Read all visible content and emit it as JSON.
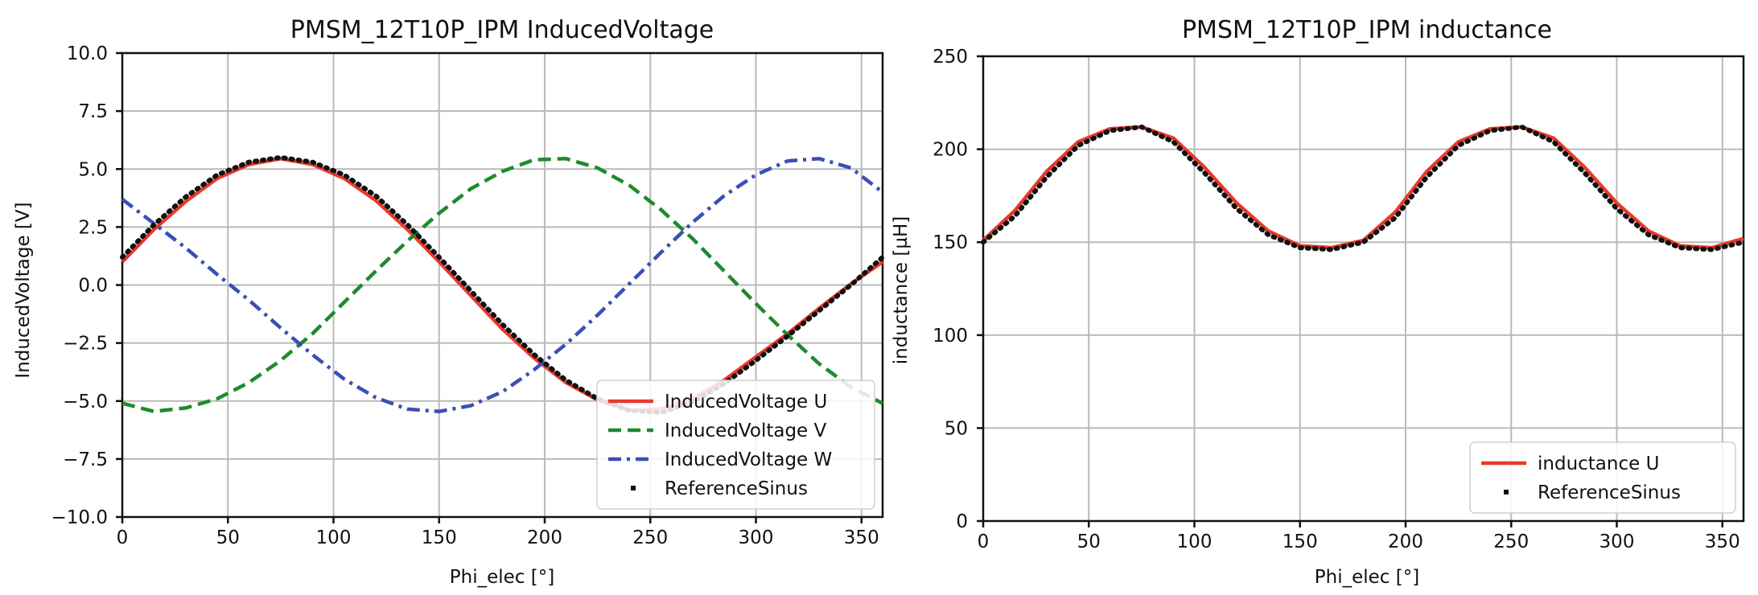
{
  "chart_data": [
    {
      "type": "line",
      "title": "PMSM_12T10P_IPM InducedVoltage",
      "xlabel": "Phi_elec [°]",
      "ylabel": "InducedVoltage [V]",
      "xlim": [
        0,
        360
      ],
      "ylim": [
        -10,
        10
      ],
      "xticks": [
        0,
        50,
        100,
        150,
        200,
        250,
        300,
        350
      ],
      "xtick_labels": [
        "0",
        "50",
        "100",
        "150",
        "200",
        "250",
        "300",
        "350"
      ],
      "yticks": [
        -10,
        -7.5,
        -5,
        -2.5,
        0,
        2.5,
        5,
        7.5,
        10
      ],
      "ytick_labels": [
        "−10.0",
        "−7.5",
        "−5.0",
        "−2.5",
        "0.0",
        "2.5",
        "5.0",
        "7.5",
        "10.0"
      ],
      "grid": true,
      "legend_position": "bottom-right",
      "x": [
        0,
        15,
        30,
        45,
        60,
        75,
        90,
        105,
        120,
        135,
        150,
        165,
        180,
        195,
        210,
        225,
        240,
        255,
        270,
        285,
        300,
        315,
        330,
        345,
        360
      ],
      "series": [
        {
          "name": "InducedVoltage U",
          "color": "#e8392b",
          "style": "solid",
          "values": [
            1.0,
            2.4,
            3.6,
            4.6,
            5.2,
            5.45,
            5.2,
            4.6,
            3.65,
            2.4,
            1.0,
            -0.45,
            -1.9,
            -3.15,
            -4.2,
            -4.95,
            -5.4,
            -5.35,
            -4.9,
            -4.1,
            -3.1,
            -2.1,
            -1.0,
            0.05,
            1.0
          ]
        },
        {
          "name": "InducedVoltage V",
          "color": "#1f8a2c",
          "style": "dashed",
          "values": [
            -5.1,
            -5.45,
            -5.3,
            -4.9,
            -4.2,
            -3.25,
            -2.1,
            -0.75,
            0.6,
            1.9,
            3.1,
            4.15,
            4.9,
            5.4,
            5.45,
            5.05,
            4.3,
            3.25,
            2.0,
            0.6,
            -0.8,
            -2.15,
            -3.4,
            -4.4,
            -5.1
          ]
        },
        {
          "name": "InducedVoltage W",
          "color": "#3a4fb5",
          "style": "dashdot",
          "values": [
            3.7,
            2.65,
            1.6,
            0.45,
            -0.65,
            -1.85,
            -3.0,
            -4.05,
            -4.85,
            -5.35,
            -5.45,
            -5.2,
            -4.6,
            -3.65,
            -2.55,
            -1.3,
            0.05,
            1.4,
            2.7,
            3.85,
            4.75,
            5.35,
            5.45,
            5.05,
            4.0
          ]
        },
        {
          "name": "ReferenceSinus",
          "color": "#111111",
          "style": "dotted",
          "values": [
            1.2,
            2.6,
            3.8,
            4.75,
            5.3,
            5.5,
            5.3,
            4.75,
            3.85,
            2.6,
            1.2,
            -0.25,
            -1.7,
            -3.0,
            -4.1,
            -4.9,
            -5.4,
            -5.5,
            -5.05,
            -4.25,
            -3.25,
            -2.2,
            -1.1,
            0.0,
            1.2
          ]
        }
      ]
    },
    {
      "type": "line",
      "title": "PMSM_12T10P_IPM inductance",
      "xlabel": "Phi_elec [°]",
      "ylabel": "inductance [µH]",
      "xlim": [
        0,
        360
      ],
      "ylim": [
        0,
        250
      ],
      "xticks": [
        0,
        50,
        100,
        150,
        200,
        250,
        300,
        350
      ],
      "xtick_labels": [
        "0",
        "50",
        "100",
        "150",
        "200",
        "250",
        "300",
        "350"
      ],
      "yticks": [
        0,
        50,
        100,
        150,
        200,
        250
      ],
      "ytick_labels": [
        "0",
        "50",
        "100",
        "150",
        "200",
        "250"
      ],
      "grid": true,
      "legend_position": "bottom-right",
      "x": [
        0,
        15,
        30,
        45,
        60,
        75,
        90,
        105,
        120,
        135,
        150,
        165,
        180,
        195,
        210,
        225,
        240,
        255,
        270,
        285,
        300,
        315,
        330,
        345,
        360
      ],
      "series": [
        {
          "name": "inductance U",
          "color": "#e8392b",
          "style": "solid",
          "values": [
            151,
            167,
            188,
            204,
            211,
            212,
            206,
            190,
            171,
            156,
            148,
            147,
            151,
            166,
            188,
            204,
            211,
            212,
            206,
            190,
            171,
            156,
            148,
            147,
            152
          ]
        },
        {
          "name": "ReferenceSinus",
          "color": "#111111",
          "style": "dotted",
          "values": [
            150,
            164,
            185,
            202,
            210,
            212,
            204,
            187,
            168,
            154,
            147,
            146,
            150,
            163,
            185,
            202,
            210,
            212,
            204,
            187,
            168,
            154,
            147,
            146,
            150
          ]
        }
      ]
    }
  ]
}
